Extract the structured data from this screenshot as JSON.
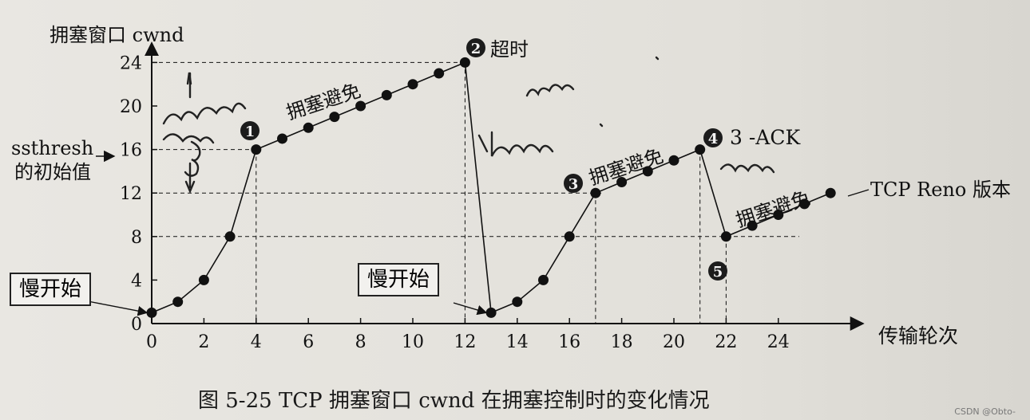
{
  "chart_data": {
    "type": "line",
    "ylabel": "拥塞窗口 cwnd",
    "xlabel": "传输轮次",
    "yticks": [
      0,
      4,
      8,
      12,
      16,
      20,
      24
    ],
    "xticks": [
      0,
      2,
      4,
      6,
      8,
      10,
      12,
      14,
      16,
      18,
      20,
      22,
      24
    ],
    "xlim": [
      0,
      27
    ],
    "ylim": [
      0,
      25.5
    ],
    "series": [
      {
        "name": "",
        "points": [
          [
            0,
            1
          ],
          [
            1,
            2
          ],
          [
            2,
            4
          ],
          [
            3,
            8
          ],
          [
            4,
            16
          ],
          [
            5,
            17
          ],
          [
            6,
            18
          ],
          [
            7,
            19
          ],
          [
            8,
            20
          ],
          [
            9,
            21
          ],
          [
            10,
            22
          ],
          [
            11,
            23
          ],
          [
            12,
            24
          ],
          [
            13,
            1
          ],
          [
            14,
            2
          ],
          [
            15,
            4
          ],
          [
            16,
            8
          ],
          [
            17,
            12
          ],
          [
            18,
            13
          ],
          [
            19,
            14
          ],
          [
            20,
            15
          ],
          [
            21,
            16
          ],
          [
            22,
            8
          ],
          [
            23,
            9
          ],
          [
            24,
            10
          ],
          [
            25,
            11
          ],
          [
            26,
            12
          ]
        ]
      }
    ],
    "reference_lines": [
      {
        "y": 24,
        "x_to": 12
      },
      {
        "y": 16,
        "x_to": 4
      },
      {
        "y": 12,
        "x_to": 17.3
      },
      {
        "y": 8,
        "x_to": 24.8
      }
    ],
    "ssthresh_label": [
      "ssthresh",
      "的初始值"
    ],
    "annotations": [
      {
        "marker": "1",
        "text": "拥塞避免"
      },
      {
        "marker": "2",
        "text": "超时"
      },
      {
        "marker": "3",
        "text": "拥塞避免"
      },
      {
        "marker": "4",
        "text": "3 -ACK"
      },
      {
        "marker": "5",
        "text": ""
      },
      {
        "marker": "",
        "text": "拥塞避免"
      },
      {
        "marker": "",
        "text": "TCP Reno 版本"
      }
    ],
    "boxed_labels": [
      "慢开始",
      "慢开始"
    ],
    "grid": false,
    "legend": "none"
  },
  "caption": "图 5-25    TCP 拥塞窗口 cwnd 在拥塞控制时的变化情况",
  "watermark": "CSDN @Obto-",
  "colors": {
    "ink": "#111111",
    "paper": "#e8e6e1"
  }
}
